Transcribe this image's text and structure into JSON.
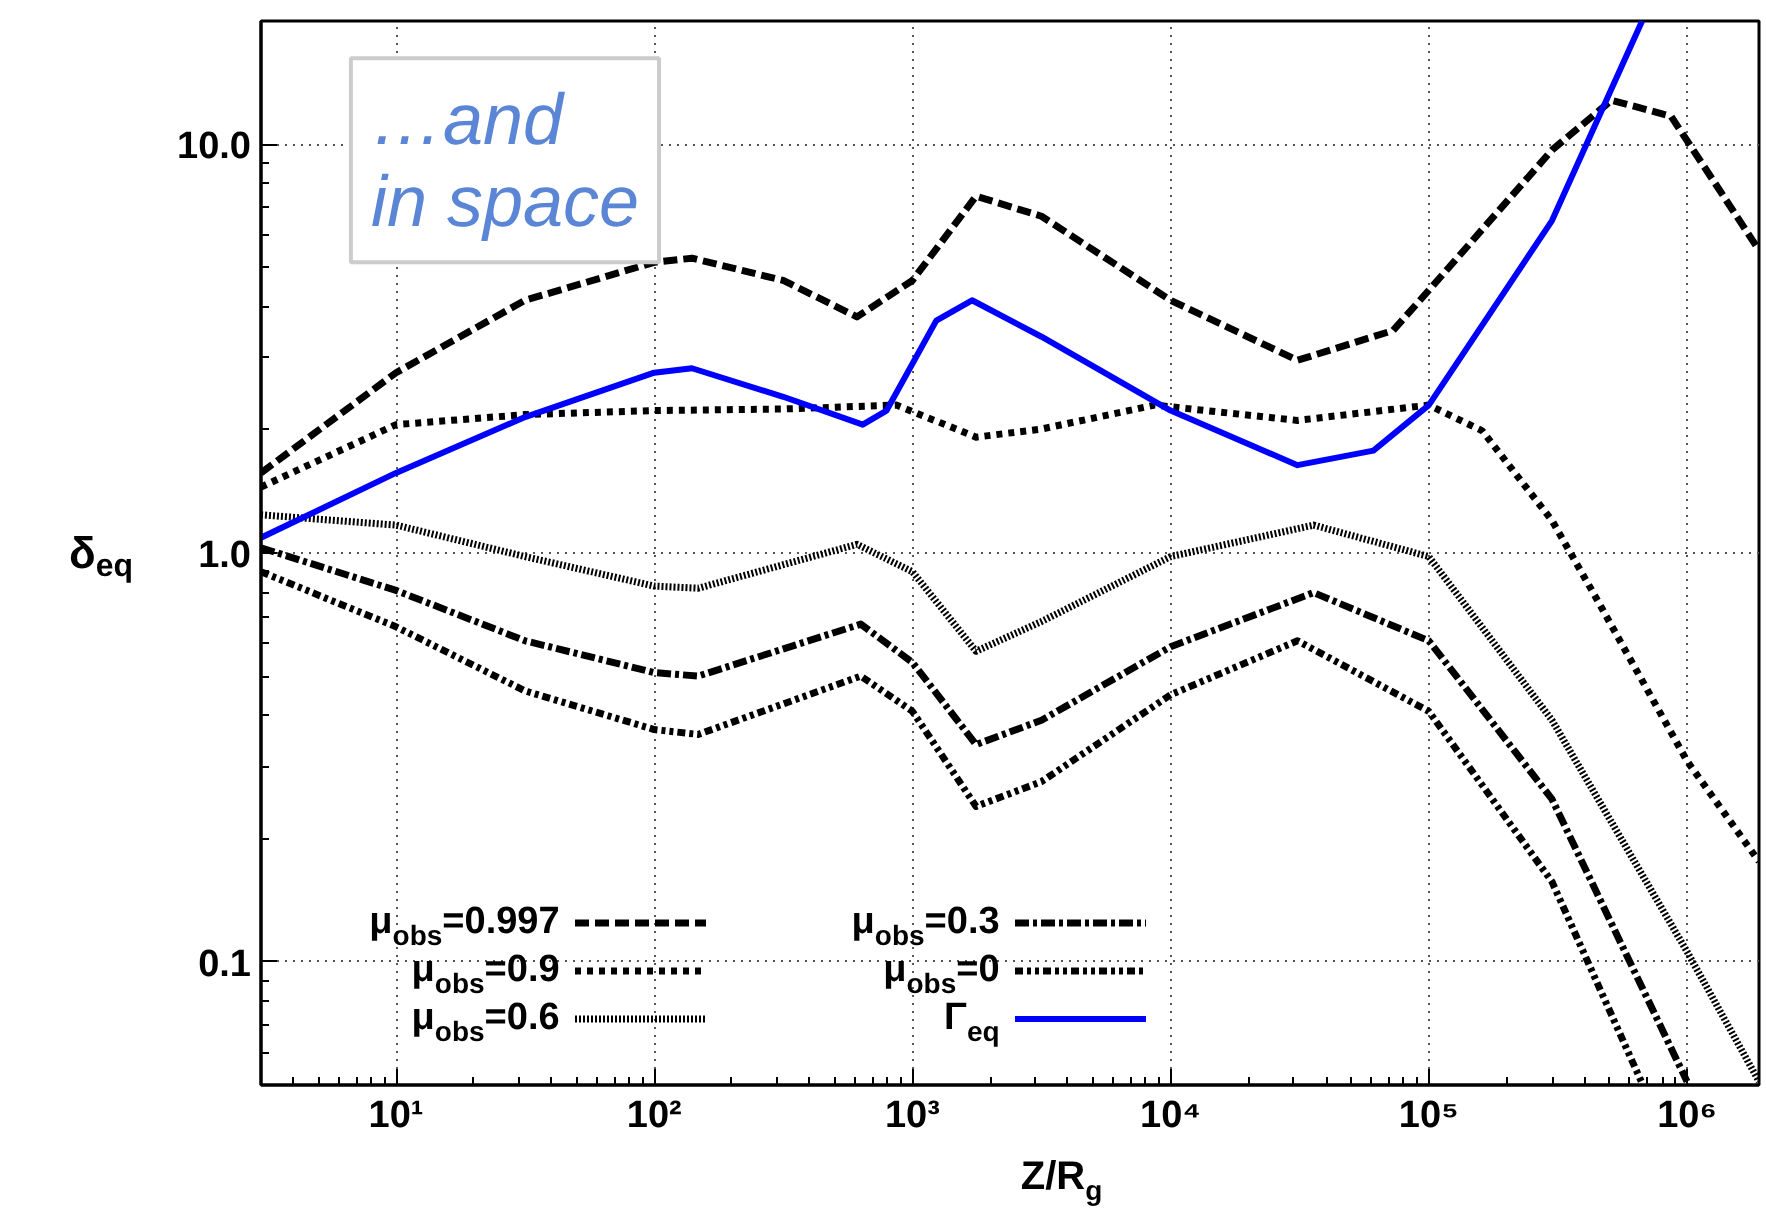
{
  "chart_data": {
    "type": "line",
    "xlabel": "Z/R$_{g}$",
    "ylabel": "δ$_{eq}$",
    "log": "xy",
    "grid": true,
    "legend": "bottom",
    "xlim": [
      3,
      1900000
    ],
    "ylim": [
      0.05,
      20
    ],
    "xticks": [
      {
        "value": 10,
        "label": "10¹"
      },
      {
        "value": 100,
        "label": "10²"
      },
      {
        "value": 1000,
        "label": "10³"
      },
      {
        "value": 10000,
        "label": "10⁴"
      },
      {
        "value": 100000,
        "label": "10⁵"
      },
      {
        "value": 1000000,
        "label": "10⁶"
      }
    ],
    "yticks": [
      0.1,
      {
        "value": 1,
        "label": "1.0"
      },
      {
        "value": 10,
        "label": "10.0"
      }
    ],
    "annotations": [
      "…and in space"
    ],
    "series": [
      {
        "name": "μ$_{obs}$=0.997",
        "color": "#000000",
        "line_style": "dashed",
        "x": [
          3,
          10,
          31.6,
          100,
          140,
          316,
          610,
          1000,
          1764,
          3162,
          10000,
          31000,
          72700,
          100000,
          300000,
          510000,
          867000,
          1900000
        ],
        "values": [
          1.57,
          2.76,
          4.15,
          5.14,
          5.26,
          4.64,
          3.78,
          4.64,
          7.46,
          6.66,
          4.15,
          2.96,
          3.5,
          4.39,
          9.67,
          12.8,
          11.7,
          5.5
        ]
      },
      {
        "name": "μ$_{obs}$=0.9",
        "color": "#000000",
        "line_style": "dotted",
        "x": [
          3,
          10,
          31.6,
          100,
          316,
          868,
          1764,
          3162,
          8670,
          31000,
          100000,
          161000,
          300000,
          428000,
          1000000,
          1900000
        ],
        "values": [
          1.45,
          2.06,
          2.18,
          2.23,
          2.25,
          2.3,
          1.92,
          2.01,
          2.3,
          2.11,
          2.3,
          1.99,
          1.2,
          0.81,
          0.31,
          0.176
        ]
      },
      {
        "name": "μ$_{obs}$=0.6",
        "color": "#000000",
        "line_style": "finedotted",
        "x": [
          3,
          10,
          31.6,
          100,
          148,
          610,
          1000,
          1764,
          3162,
          10000,
          35800,
          100000,
          300000,
          1000000,
          1900000
        ],
        "values": [
          1.24,
          1.17,
          0.98,
          0.83,
          0.82,
          1.05,
          0.9,
          0.575,
          0.68,
          0.98,
          1.17,
          0.98,
          0.39,
          0.106,
          0.051
        ]
      },
      {
        "name": "μ$_{obs}$=0.3",
        "color": "#000000",
        "line_style": "dashdot",
        "x": [
          3,
          10,
          31.6,
          100,
          148,
          631,
          1000,
          1764,
          3162,
          10000,
          35800,
          100000,
          300000,
          1000000
        ],
        "values": [
          1.03,
          0.81,
          0.61,
          0.51,
          0.5,
          0.67,
          0.54,
          0.34,
          0.39,
          0.59,
          0.8,
          0.61,
          0.25,
          0.051
        ]
      },
      {
        "name": "μ$_{obs}$=0",
        "color": "#000000",
        "line_style": "dashdotdot",
        "x": [
          3,
          10,
          31.6,
          100,
          148,
          631,
          1000,
          1764,
          3162,
          10000,
          31000,
          100000,
          300000,
          665000
        ],
        "values": [
          0.9,
          0.66,
          0.46,
          0.37,
          0.36,
          0.5,
          0.41,
          0.24,
          0.276,
          0.45,
          0.61,
          0.41,
          0.157,
          0.051
        ]
      },
      {
        "name": "Γ$_{eq}$",
        "color": "#0000ff",
        "line_style": "solid",
        "x": [
          3,
          10,
          31.6,
          100,
          140,
          316,
          642,
          794,
          1237,
          1702,
          3162,
          10000,
          31000,
          61000,
          100000,
          300000,
          670000
        ],
        "values": [
          1.09,
          1.57,
          2.15,
          2.76,
          2.83,
          2.41,
          2.06,
          2.23,
          3.7,
          4.15,
          3.38,
          2.23,
          1.64,
          1.78,
          2.3,
          6.5,
          20
        ]
      }
    ]
  }
}
